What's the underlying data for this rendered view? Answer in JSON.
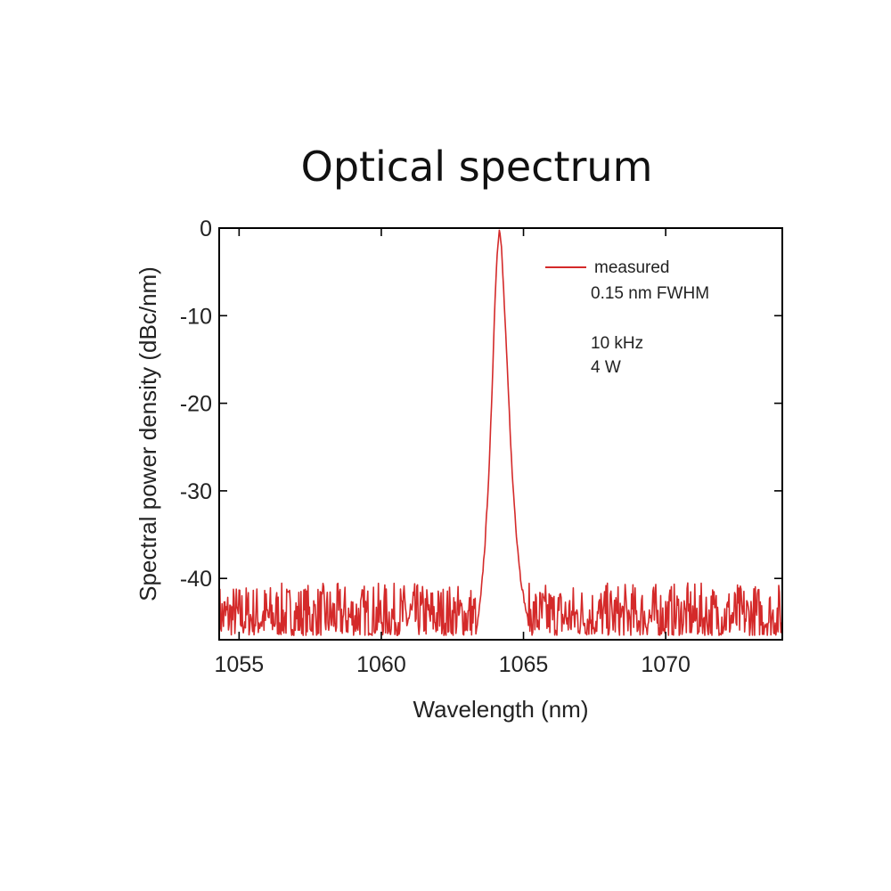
{
  "chart_data": {
    "type": "line",
    "title": "Optical spectrum",
    "xlabel": "Wavelength (nm)",
    "ylabel": "Spectral power density (dBc/nm)",
    "xlim": [
      1054.3,
      1074.1
    ],
    "ylim": [
      -47,
      0
    ],
    "xticks": [
      1055,
      1060,
      1065,
      1070
    ],
    "xtick_labels": [
      "1055",
      "1060",
      "1065",
      "1070"
    ],
    "yticks": [
      0,
      -10,
      -20,
      -30,
      -40
    ],
    "ytick_labels": [
      "0",
      "-10",
      "-20",
      "-30",
      "-40"
    ],
    "grid": false,
    "legend_position": "top-right",
    "line_color": "#d42a2a",
    "series": [
      {
        "name": "measured",
        "noise_floor": {
          "x_range": [
            1054.3,
            1074.1
          ],
          "y_range": [
            -46.5,
            -40.5
          ]
        },
        "peak_profile": {
          "x": [
            1063.35,
            1063.5,
            1063.65,
            1063.8,
            1063.9,
            1064.0,
            1064.08,
            1064.15,
            1064.22,
            1064.3,
            1064.4,
            1064.5,
            1064.6,
            1064.75,
            1064.9,
            1065.05,
            1065.2
          ],
          "y": [
            -46.0,
            -42.0,
            -36.0,
            -27.0,
            -18.0,
            -8.0,
            -2.5,
            0.0,
            -2.0,
            -7.0,
            -14.0,
            -21.0,
            -28.0,
            -35.0,
            -40.0,
            -43.0,
            -45.5
          ]
        }
      }
    ]
  },
  "legend": {
    "line1": "measured",
    "line2": "0.15 nm FWHM",
    "line3": "10 kHz",
    "line4": "4 W"
  }
}
